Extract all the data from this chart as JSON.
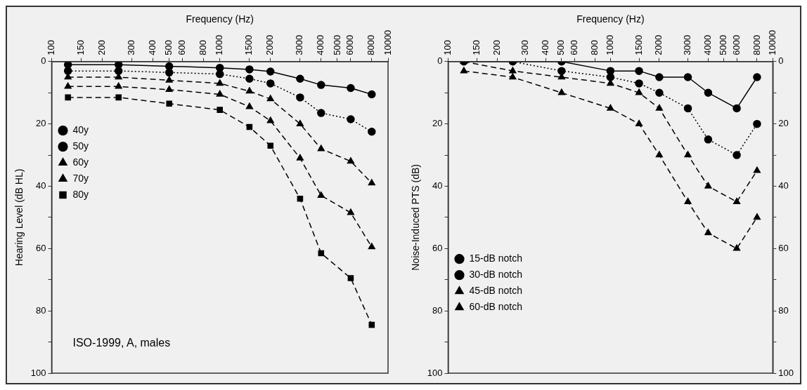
{
  "chart_data": [
    {
      "type": "line",
      "xlabel": "Frequency (Hz)",
      "ylabel": "Hearing Level (dB HL)",
      "log": "x",
      "xlim": [
        100,
        10000
      ],
      "xticks": [
        100,
        150,
        200,
        300,
        400,
        500,
        600,
        800,
        1000,
        1500,
        2000,
        3000,
        4000,
        5000,
        6000,
        8000,
        10000
      ],
      "ylim": [
        100,
        0
      ],
      "yticks": [
        0,
        {
          "value": 10,
          "label": null
        },
        20,
        {
          "value": 30,
          "label": null
        },
        40,
        {
          "value": 50,
          "label": null
        },
        60,
        {
          "value": 70,
          "label": null
        },
        80,
        {
          "value": 90,
          "label": null
        },
        100
      ],
      "legend": "left",
      "annotations": [
        "ISO-1999, A, males"
      ],
      "series": [
        {
          "name": "40y",
          "color": "#000000",
          "marker": "circle",
          "line_style": "solid",
          "x": [
            125,
            250,
            500,
            1000,
            1500,
            2000,
            3000,
            4000,
            6000,
            8000
          ],
          "values": [
            1,
            1,
            1.5,
            2,
            2.5,
            3.2,
            5.5,
            7.5,
            8.5,
            10.5
          ]
        },
        {
          "name": "50y",
          "color": "#000000",
          "marker": "circle",
          "line_style": "dotted",
          "x": [
            125,
            250,
            500,
            1000,
            1500,
            2000,
            3000,
            4000,
            6000,
            8000
          ],
          "values": [
            3,
            3,
            3.5,
            4,
            5.5,
            7,
            11.5,
            16.5,
            18.5,
            22.5
          ]
        },
        {
          "name": "60y",
          "color": "#000000",
          "marker": "triangle",
          "line_style": "dashed",
          "x": [
            125,
            250,
            500,
            1000,
            1500,
            2000,
            3000,
            4000,
            6000,
            8000
          ],
          "values": [
            5,
            5,
            6,
            7,
            9.5,
            12,
            20,
            28,
            32,
            39
          ]
        },
        {
          "name": "70y",
          "color": "#000000",
          "marker": "triangle",
          "line_style": "dashed",
          "x": [
            125,
            250,
            500,
            1000,
            1500,
            2000,
            3000,
            4000,
            6000,
            8000
          ],
          "values": [
            8,
            8,
            9,
            10.5,
            14.5,
            19,
            31,
            43,
            48.5,
            59.5
          ]
        },
        {
          "name": "80y",
          "color": "#000000",
          "marker": "square",
          "line_style": "dashed",
          "x": [
            125,
            250,
            500,
            1000,
            1500,
            2000,
            3000,
            4000,
            6000,
            8000
          ],
          "values": [
            11.5,
            11.5,
            13.5,
            15.5,
            21,
            27,
            44,
            61.5,
            69.5,
            84.5
          ]
        }
      ]
    },
    {
      "type": "line",
      "xlabel": "Frequency (Hz)",
      "ylabel": "Noise-Induced PTS (dB)",
      "log": "x",
      "xlim": [
        100,
        10000
      ],
      "xticks": [
        100,
        150,
        200,
        300,
        400,
        500,
        600,
        800,
        1000,
        1500,
        2000,
        3000,
        4000,
        5000,
        6000,
        8000,
        10000
      ],
      "ylim": [
        100,
        0
      ],
      "yticks": [
        0,
        {
          "value": 10,
          "label": null
        },
        20,
        {
          "value": 30,
          "label": null
        },
        40,
        {
          "value": 50,
          "label": null
        },
        60,
        {
          "value": 70,
          "label": null
        },
        80,
        {
          "value": 90,
          "label": null
        },
        100
      ],
      "y2lim": [
        100,
        0
      ],
      "y2ticks": [
        0,
        {
          "value": 10,
          "label": null
        },
        20,
        {
          "value": 30,
          "label": null
        },
        40,
        {
          "value": 50,
          "label": null
        },
        60,
        {
          "value": 70,
          "label": null
        },
        80,
        {
          "value": 90,
          "label": null
        },
        100
      ],
      "legend": "bottom left",
      "series": [
        {
          "name": "15-dB notch",
          "color": "#000000",
          "marker": "circle",
          "line_style": "solid",
          "x": [
            125,
            500,
            1000,
            1500,
            2000,
            3000,
            4000,
            6000,
            8000
          ],
          "values": [
            0,
            0,
            3,
            3,
            5,
            5,
            10,
            15,
            5
          ]
        },
        {
          "name": "30-dB notch",
          "color": "#000000",
          "marker": "circle",
          "line_style": "dotted",
          "x": [
            250,
            500,
            1000,
            1500,
            2000,
            3000,
            4000,
            6000,
            8000
          ],
          "values": [
            0,
            3,
            5,
            7,
            10,
            15,
            25,
            30,
            20
          ]
        },
        {
          "name": "45-dB notch",
          "color": "#000000",
          "marker": "triangle",
          "line_style": "dashed",
          "x": [
            125,
            250,
            500,
            1000,
            1500,
            2000,
            3000,
            4000,
            6000,
            8000
          ],
          "values": [
            0,
            3,
            5,
            7,
            10,
            15,
            30,
            40,
            45,
            35
          ]
        },
        {
          "name": "60-dB notch",
          "color": "#000000",
          "marker": "triangle",
          "line_style": "dashed",
          "x": [
            125,
            250,
            500,
            1000,
            1500,
            2000,
            3000,
            4000,
            6000,
            8000
          ],
          "values": [
            3,
            5,
            10,
            15,
            20,
            30,
            45,
            55,
            60,
            50
          ]
        }
      ]
    }
  ]
}
